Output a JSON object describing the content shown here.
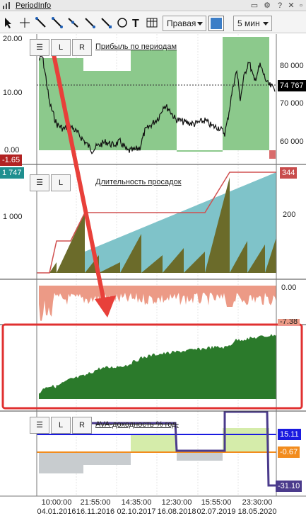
{
  "tab": {
    "title": "PeriodInfo"
  },
  "toolbar": {
    "tools": [
      {
        "name": "pointer-tool-icon"
      },
      {
        "name": "crosshair-tool-icon"
      },
      {
        "name": "line-tool-icon"
      },
      {
        "name": "ray-tool-icon"
      },
      {
        "name": "trend-line-tool-icon"
      },
      {
        "name": "segment-tool-icon"
      },
      {
        "name": "text-tool-icon"
      },
      {
        "name": "table-tool-icon"
      }
    ],
    "axis_side": "Правая",
    "timeframe": "5 мин",
    "color": "#3c7ec7"
  },
  "panels": {
    "profit": {
      "title": "Прибыль по периодам",
      "left_axis": [
        "20.00",
        "10.00",
        "0.00"
      ],
      "right_axis": [
        "80 000",
        "70 000",
        "60 000"
      ],
      "left_tag": "-1.65",
      "price_tag": "74 767",
      "colors": {
        "bar": "#8cc98c",
        "bar_border": "#5aa85a",
        "price": "#111111",
        "tag_left": "#b22222",
        "tag_right": "#000000",
        "neg": "#d96c6c"
      }
    },
    "drawdown": {
      "title": "Длительность просадок",
      "left_tag": "1 747",
      "left_axis": [
        "1 000"
      ],
      "right_tag": "344",
      "right_axis": [
        "200"
      ],
      "colors": {
        "fill": "#6b6b2a",
        "teal": "#7fc3c9",
        "line": "#d05050",
        "tag_left": "#1f8f8f",
        "tag_right": "#c84c4c"
      }
    },
    "underwater": {
      "right_axis": [
        "0.00"
      ],
      "right_tag": "-7.38",
      "colors": {
        "fill": "#ec9a86"
      }
    },
    "equity": {
      "colors": {
        "fill": "#2b7a2b"
      }
    },
    "ava": {
      "title": "AVA-доходность % год.",
      "tag_blue": "15.11",
      "tag_orange": "-0.67",
      "tag_navy": "-31.10",
      "colors": {
        "blue": "#1a1ae0",
        "orange": "#f28c1e",
        "navy": "#4b3b8c",
        "green": "#d5ecaa",
        "grey": "#c8cccf"
      }
    }
  },
  "legend_buttons": {
    "menu": "☰",
    "l": "L",
    "r": "R"
  },
  "x_axis": [
    {
      "time": "10:00:00",
      "date": "04.01.2016"
    },
    {
      "time": "21:55:00",
      "date": "16.11.2016"
    },
    {
      "time": "14:35:00",
      "date": "02.10.2017"
    },
    {
      "time": "12:30:00",
      "date": "16.08.2018"
    },
    {
      "time": "15:55:00",
      "date": "02.07.2019"
    },
    {
      "time": "23:30:00",
      "date": "18.05.2020"
    }
  ],
  "annotation": {
    "color": "#e8403a",
    "highlight_color": "#e03030"
  }
}
